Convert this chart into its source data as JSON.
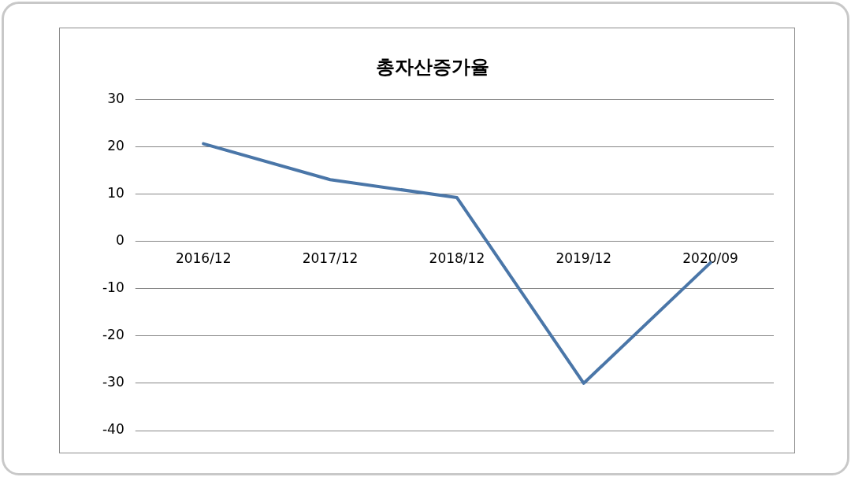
{
  "chart_data": {
    "type": "line",
    "title": "총자산증가율",
    "categories": [
      "2016/12",
      "2017/12",
      "2018/12",
      "2019/12",
      "2020/09"
    ],
    "series": [
      {
        "color": "#4a76a8",
        "values": [
          20.7,
          13.1,
          9.3,
          -30,
          -4.5
        ]
      }
    ],
    "ylim": [
      -40,
      30
    ],
    "yticks": [
      -40,
      -30,
      -20,
      -10,
      0,
      10,
      20,
      30
    ],
    "grid": "y",
    "legend": false,
    "marker": "none",
    "line_style": "solid"
  }
}
